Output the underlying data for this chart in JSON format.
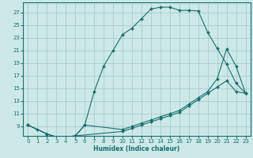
{
  "xlabel": "Humidex (Indice chaleur)",
  "bg_color": "#cce8e8",
  "line_color": "#1a6e6e",
  "grid_color": "#aacccc",
  "xlim": [
    -0.5,
    23.5
  ],
  "ylim": [
    7.5,
    28.5
  ],
  "xticks": [
    0,
    1,
    2,
    3,
    4,
    5,
    6,
    7,
    8,
    9,
    10,
    11,
    12,
    13,
    14,
    15,
    16,
    17,
    18,
    19,
    20,
    21,
    22,
    23
  ],
  "yticks": [
    9,
    11,
    13,
    15,
    17,
    19,
    21,
    23,
    25,
    27
  ],
  "line1_x": [
    0,
    1,
    2,
    3,
    4,
    5,
    6,
    7,
    8,
    9,
    10,
    11,
    12,
    13,
    14,
    15,
    16,
    17,
    18,
    19,
    20,
    21,
    22,
    23
  ],
  "line1_y": [
    9.2,
    8.5,
    7.8,
    7.3,
    7.3,
    7.5,
    9.2,
    14.5,
    18.5,
    21,
    23.5,
    24.5,
    26,
    27.5,
    27.8,
    27.8,
    27.3,
    27.3,
    27.2,
    23.8,
    21.3,
    18.8,
    15.8,
    14.2
  ],
  "line2_x": [
    0,
    2,
    3,
    4,
    5,
    6,
    10,
    11,
    12,
    13,
    14,
    15,
    16,
    17,
    18,
    19,
    20,
    21,
    22,
    23
  ],
  "line2_y": [
    9.2,
    7.8,
    7.3,
    7.3,
    7.5,
    9.2,
    8.5,
    9.0,
    9.5,
    10.0,
    10.5,
    11.0,
    11.5,
    12.5,
    13.5,
    14.5,
    16.5,
    21.2,
    18.5,
    14.2
  ],
  "line3_x": [
    0,
    2,
    3,
    4,
    5,
    10,
    11,
    12,
    13,
    14,
    15,
    16,
    17,
    18,
    19,
    20,
    21,
    22,
    23
  ],
  "line3_y": [
    9.2,
    7.8,
    7.3,
    7.3,
    7.5,
    8.2,
    8.7,
    9.2,
    9.7,
    10.2,
    10.7,
    11.2,
    12.2,
    13.2,
    14.2,
    15.2,
    16.2,
    14.5,
    14.2
  ]
}
